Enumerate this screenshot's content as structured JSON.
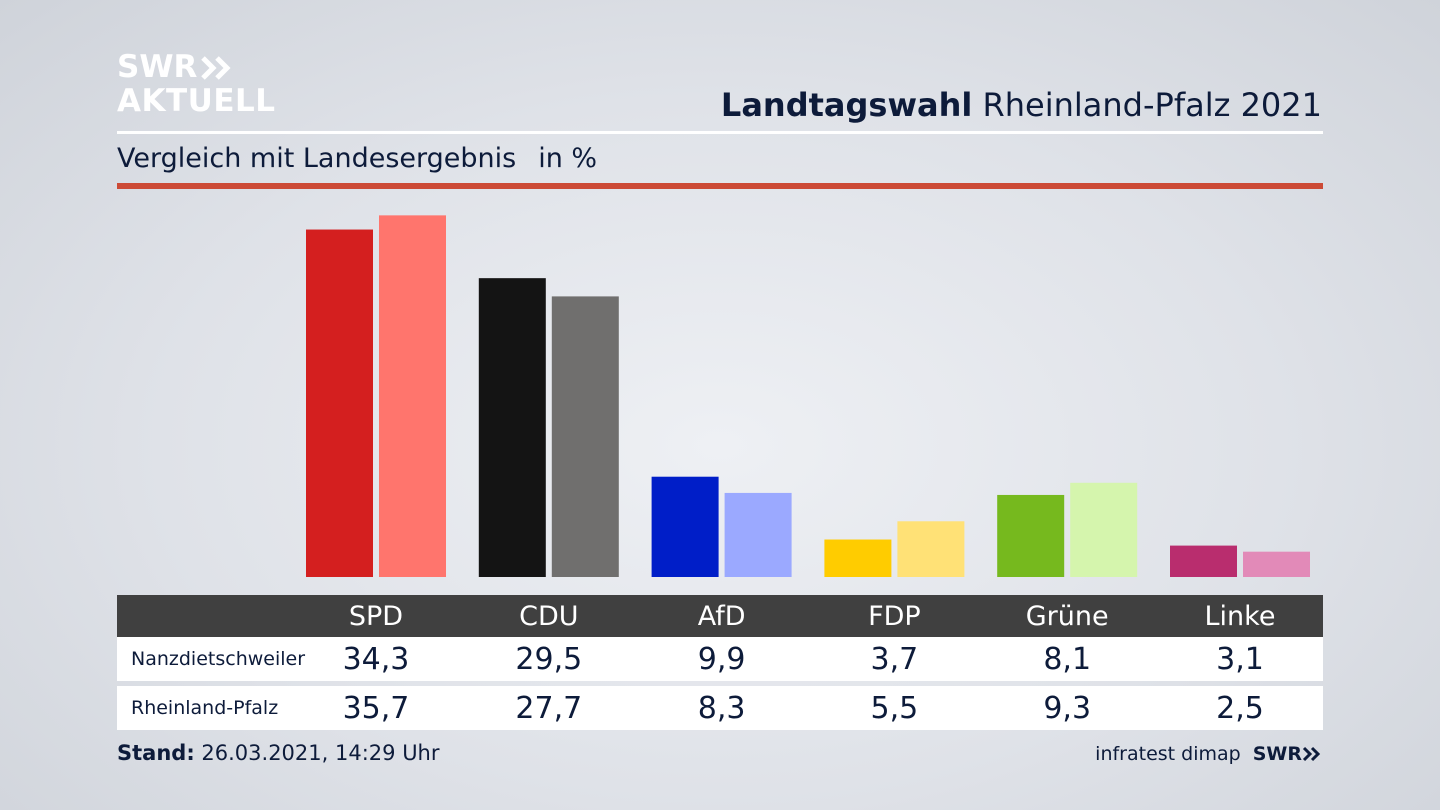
{
  "logo": {
    "line1": "SWR",
    "line2": "AKTUELL"
  },
  "title": {
    "bold": "Landtagswahl",
    "rest": "Rheinland-Pfalz 2021"
  },
  "subtitle": {
    "text": "Vergleich mit Landesergebnis",
    "unit": "in %"
  },
  "chart_data": {
    "type": "bar",
    "categories": [
      "SPD",
      "CDU",
      "AfD",
      "FDP",
      "Grüne",
      "Linke"
    ],
    "series": [
      {
        "name": "Nanzdietschweiler",
        "values": [
          34.3,
          29.5,
          9.9,
          3.7,
          8.1,
          3.1
        ],
        "display": [
          "34,3",
          "29,5",
          "9,9",
          "3,7",
          "8,1",
          "3,1"
        ]
      },
      {
        "name": "Rheinland-Pfalz",
        "values": [
          35.7,
          27.7,
          8.3,
          5.5,
          9.3,
          2.5
        ],
        "display": [
          "35,7",
          "27,7",
          "8,3",
          "5,5",
          "9,3",
          "2,5"
        ]
      }
    ],
    "colors": [
      [
        "#d41f1f",
        "#ff756d"
      ],
      [
        "#141414",
        "#706f6e"
      ],
      [
        "#001ec8",
        "#9ba9ff"
      ],
      [
        "#ffcc00",
        "#ffe176"
      ],
      [
        "#76b91e",
        "#d5f5ad"
      ],
      [
        "#b92d6e",
        "#e28ab8"
      ]
    ],
    "ylim": [
      0,
      36
    ]
  },
  "footer": {
    "label": "Stand:",
    "value": "26.03.2021, 14:29 Uhr"
  },
  "source": {
    "text": "infratest dimap",
    "brand": "SWR"
  }
}
